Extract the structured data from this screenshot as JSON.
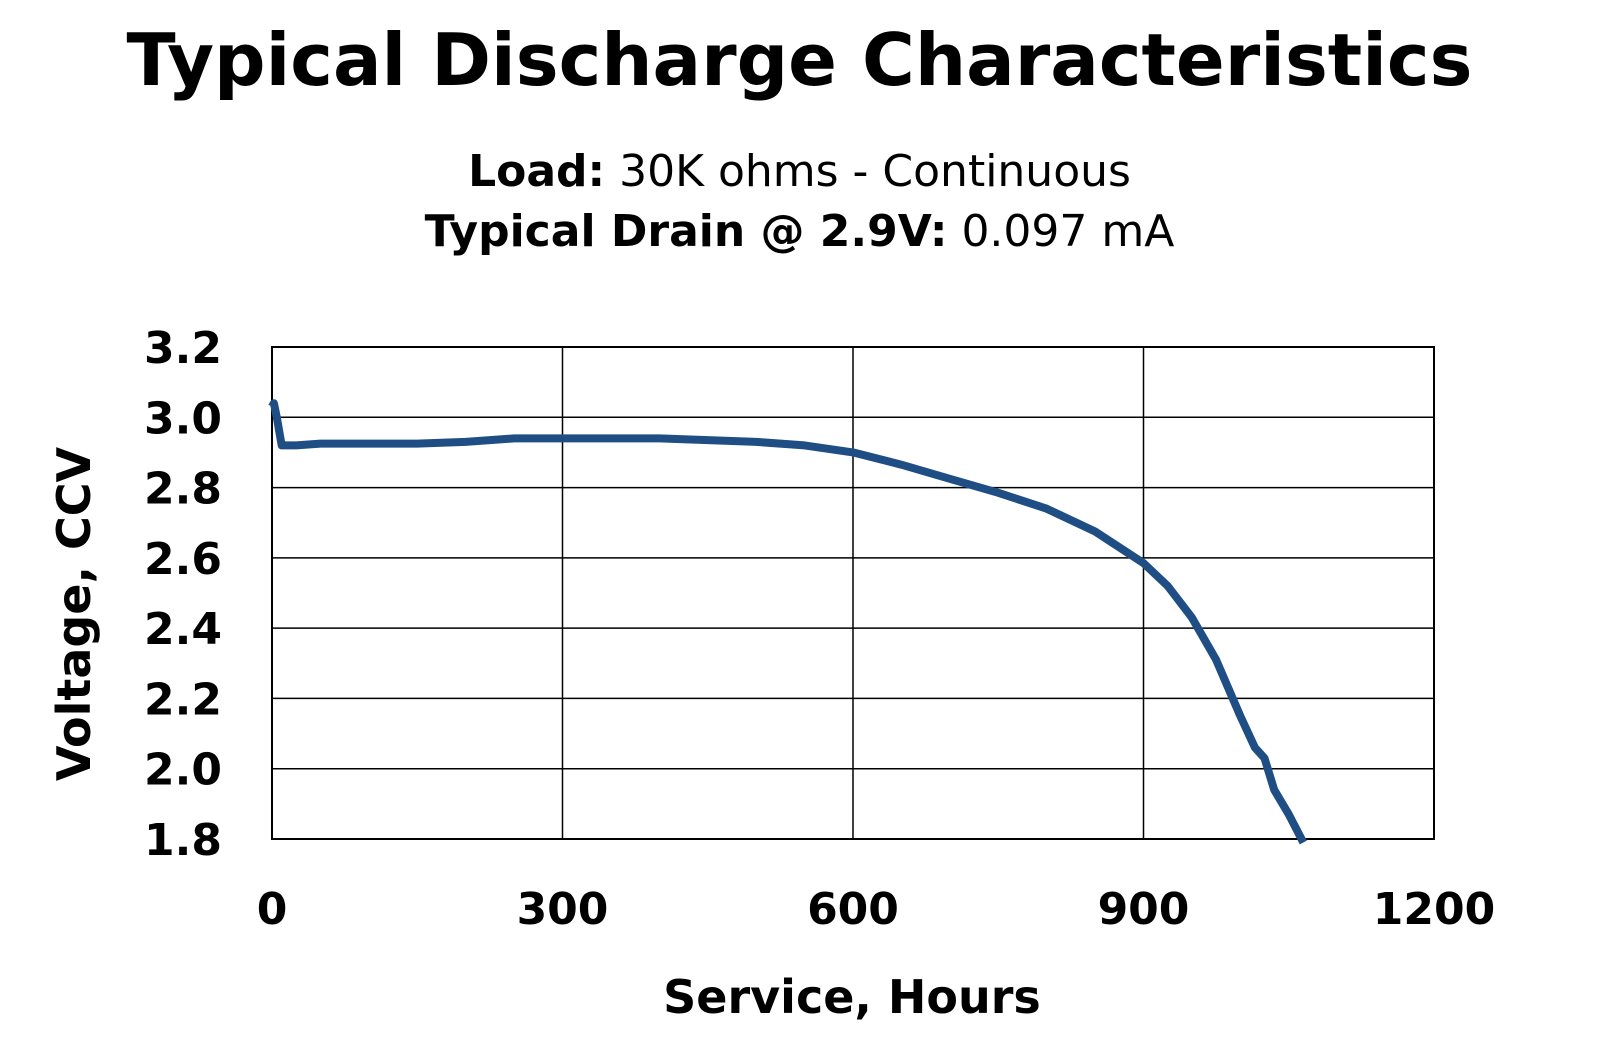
{
  "title": "Typical Discharge Characteristics",
  "load": {
    "label": "Load:",
    "value": "30K ohms - Continuous"
  },
  "drain": {
    "label": "Typical Drain @ 2.9V:",
    "value": "0.097 mA"
  },
  "colors": {
    "series": "#1f4e85",
    "grid": "#000000"
  },
  "chart_data": {
    "type": "line",
    "title": "Typical Discharge Characteristics",
    "xlabel": "Service, Hours",
    "ylabel": "Voltage, CCV",
    "xlim": [
      0,
      1200
    ],
    "ylim": [
      1.8,
      3.2
    ],
    "xticks": [
      "0",
      "300",
      "600",
      "900",
      "1200"
    ],
    "yticks": [
      "3.2",
      "3.0",
      "2.8",
      "2.6",
      "2.4",
      "2.2",
      "2.0",
      "1.8"
    ],
    "grid": true,
    "series": [
      {
        "x": [
          0,
          2,
          5,
          10,
          25,
          50,
          100,
          150,
          200,
          250,
          300,
          350,
          400,
          450,
          500,
          550,
          600,
          650,
          700,
          750,
          800,
          850,
          900,
          925,
          950,
          975,
          1000,
          1015,
          1025,
          1035,
          1050,
          1065
        ],
        "y": [
          3.03,
          3.04,
          3.0,
          2.92,
          2.92,
          2.925,
          2.925,
          2.925,
          2.93,
          2.94,
          2.94,
          2.94,
          2.94,
          2.935,
          2.93,
          2.92,
          2.9,
          2.865,
          2.825,
          2.785,
          2.74,
          2.675,
          2.585,
          2.52,
          2.43,
          2.31,
          2.15,
          2.06,
          2.03,
          1.94,
          1.87,
          1.79
        ]
      }
    ]
  }
}
